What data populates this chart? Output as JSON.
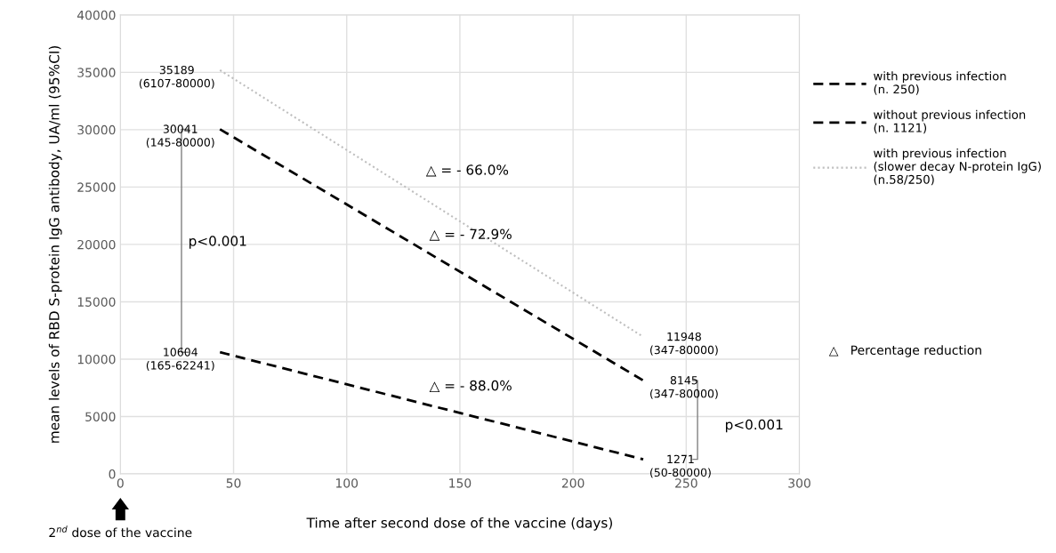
{
  "chart_data": {
    "type": "line",
    "xlabel": "Time after second dose of the vaccine (days)",
    "ylabel": "mean levels of RBD S-protein IgG antibody, UA/ml (95%CI)",
    "x": [
      44,
      231
    ],
    "series": [
      {
        "name": "with previous infection\n(n. 250)",
        "color": "#000000",
        "line_style": "dashed",
        "values": [
          30041,
          8145
        ],
        "value_labels": [
          "30041\n(145-80000)",
          "8145\n(347-80000)"
        ]
      },
      {
        "name": "without previous infection\n(n. 1121)",
        "color": "#000000",
        "line_style": "dashed",
        "values": [
          10604,
          1271
        ],
        "value_labels": [
          "10604\n(165-62241)",
          "1271\n(50-80000)"
        ]
      },
      {
        "name": "with previous infection\n(slower decay N-protein IgG)\n(n.58/250)",
        "color": "#bfbfbf",
        "line_style": "dotted",
        "values": [
          35189,
          11948
        ],
        "value_labels": [
          "35189\n(6107-80000)",
          "11948\n(347-80000)"
        ]
      }
    ],
    "xlim": [
      0,
      300
    ],
    "ylim": [
      0,
      40000
    ],
    "xticks": [
      0,
      50,
      100,
      150,
      200,
      250,
      300
    ],
    "yticks": [
      0,
      5000,
      10000,
      15000,
      20000,
      25000,
      30000,
      35000,
      40000
    ],
    "grid": true,
    "legend": "right",
    "annotations": [
      "△ = - 66.0%",
      "△ = - 72.9%",
      "△ = - 88.0%",
      "p<0.001",
      "p<0.001",
      "△   Percentage reduction",
      "2$^{nd}$ dose of the vaccine"
    ]
  }
}
